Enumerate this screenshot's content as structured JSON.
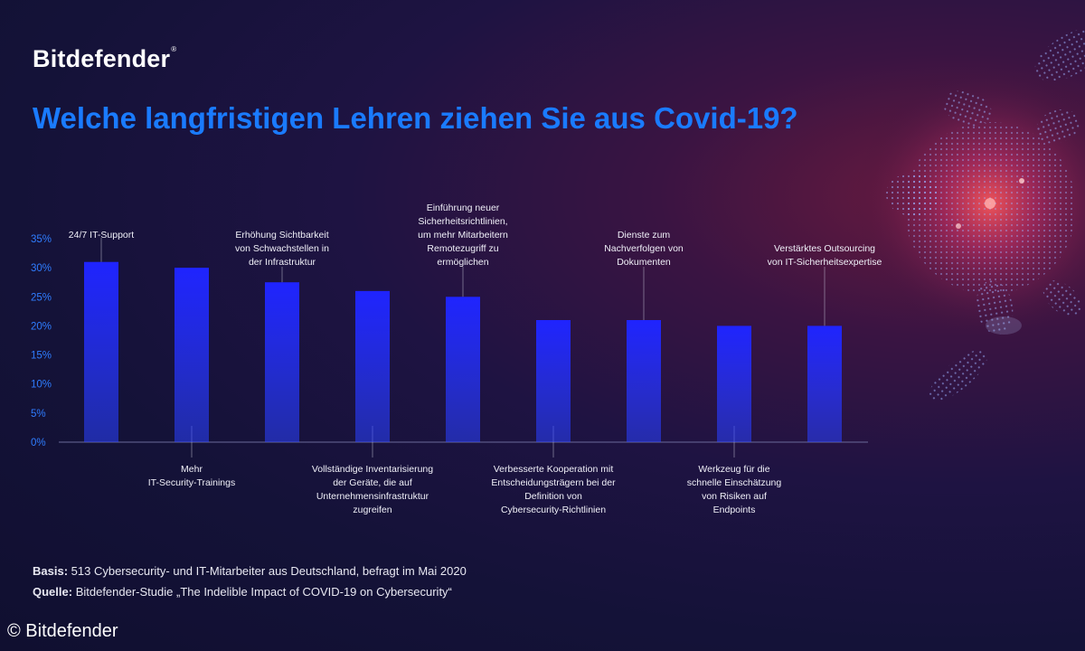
{
  "brand": {
    "name": "Bitdefender",
    "reg": "®"
  },
  "title": "Welche langfristigen Lehren ziehen Sie aus Covid-19?",
  "chart_data": {
    "type": "bar",
    "title": "Welche langfristigen Lehren ziehen Sie aus Covid-19?",
    "xlabel": "",
    "ylabel": "",
    "ylim": [
      0,
      35
    ],
    "yticks": [
      0,
      5,
      10,
      15,
      20,
      25,
      30,
      35
    ],
    "ytick_labels": [
      "0%",
      "5%",
      "10%",
      "15%",
      "20%",
      "25%",
      "30%",
      "35%"
    ],
    "grid": false,
    "categories": [
      [
        "24/7 IT-Support"
      ],
      [
        "Mehr",
        "IT-Security-Trainings"
      ],
      [
        "Erhöhung Sichtbarkeit",
        "von Schwachstellen in",
        "der Infrastruktur"
      ],
      [
        "Vollständige Inventarisierung",
        "der Geräte, die auf",
        "Unternehmensinfrastruktur",
        "zugreifen"
      ],
      [
        "Einführung neuer",
        "Sicherheitsrichtlinien,",
        "um mehr Mitarbeitern",
        "Remotezugriff zu",
        "ermöglichen"
      ],
      [
        "Verbesserte Kooperation mit",
        "Entscheidungsträgern bei der",
        "Definition von",
        "Cybersecurity-Richtlinien"
      ],
      [
        "Dienste zum",
        "Nachverfolgen von",
        "Dokumenten"
      ],
      [
        "Werkzeug für die",
        "schnelle Einschätzung",
        "von Risiken auf",
        "Endpoints"
      ],
      [
        "Verstärktes Outsourcing",
        "von IT-Sicherheitsexpertise"
      ]
    ],
    "label_positions": [
      "above",
      "below",
      "above",
      "below",
      "above",
      "below",
      "above",
      "below",
      "above"
    ],
    "values": [
      31,
      30,
      27.5,
      26,
      25,
      21,
      21,
      20,
      20
    ],
    "bar_color": "#1f24ff"
  },
  "footnotes": {
    "basis_label": "Basis:",
    "basis_text": " 513 Cybersecurity- und IT-Mitarbeiter aus Deutschland, befragt im Mai 2020",
    "quelle_label": "Quelle:",
    "quelle_text": " Bitdefender-Studie „The Indelible Impact of COVID-19 on Cybersecurity“"
  },
  "copyright": "© Bitdefender"
}
